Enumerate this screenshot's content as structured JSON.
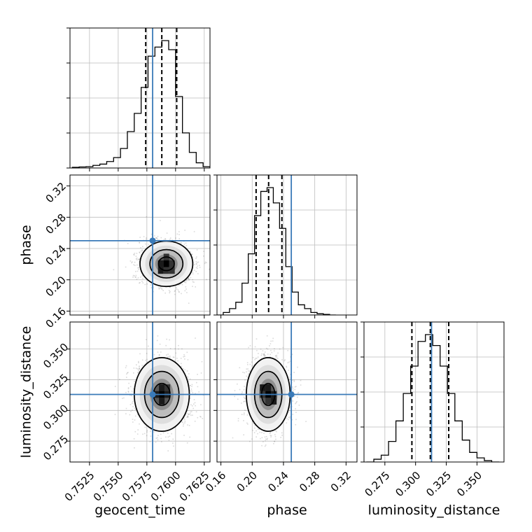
{
  "chart_data": {
    "type": "corner",
    "parameters": [
      "geocent_time",
      "phase",
      "luminosity_distance"
    ],
    "truth_color": "#3a7ab8",
    "truths": {
      "geocent_time": 0.758,
      "phase": 0.25,
      "luminosity_distance": 0.313
    },
    "ranges": {
      "geocent_time": [
        0.7508,
        0.763
      ],
      "phase": [
        0.155,
        0.334
      ],
      "luminosity_distance": [
        0.258,
        0.372
      ]
    },
    "ticks": {
      "geocent_time": [
        0.7525,
        0.755,
        0.7575,
        0.76,
        0.7625
      ],
      "phase": [
        0.16,
        0.2,
        0.24,
        0.28,
        0.32
      ],
      "luminosity_distance": [
        0.275,
        0.3,
        0.325,
        0.35
      ]
    },
    "tick_labels": {
      "geocent_time": [
        "0.7525",
        "0.7550",
        "0.7575",
        "0.7600",
        "0.7625"
      ],
      "phase": [
        "0.16",
        "0.20",
        "0.24",
        "0.28",
        "0.32"
      ],
      "luminosity_distance": [
        "0.275",
        "0.300",
        "0.325",
        "0.350"
      ]
    },
    "quantiles": {
      "geocent_time": [
        0.7574,
        0.7588,
        0.7601
      ],
      "phase": [
        0.205,
        0.221,
        0.238
      ],
      "luminosity_distance": [
        0.297,
        0.312,
        0.327
      ]
    },
    "histograms": {
      "geocent_time": {
        "edges": [
          0.751,
          0.7516,
          0.7522,
          0.7528,
          0.7534,
          0.754,
          0.7546,
          0.7552,
          0.7558,
          0.7564,
          0.757,
          0.7576,
          0.7582,
          0.7588,
          0.7594,
          0.76,
          0.7606,
          0.7612,
          0.7618,
          0.7624,
          0.763
        ],
        "counts": [
          0.005,
          0.008,
          0.01,
          0.02,
          0.03,
          0.05,
          0.08,
          0.15,
          0.28,
          0.42,
          0.62,
          0.86,
          0.93,
          0.98,
          0.91,
          0.55,
          0.27,
          0.12,
          0.04,
          0.01
        ]
      },
      "phase": {
        "edges": [
          0.155,
          0.163,
          0.171,
          0.179,
          0.187,
          0.195,
          0.203,
          0.211,
          0.219,
          0.227,
          0.235,
          0.243,
          0.251,
          0.259,
          0.267,
          0.275,
          0.283,
          0.291,
          0.299,
          0.307
        ],
        "counts": [
          0.0,
          0.02,
          0.05,
          0.1,
          0.25,
          0.48,
          0.78,
          0.97,
          1.0,
          0.88,
          0.68,
          0.38,
          0.18,
          0.08,
          0.05,
          0.02,
          0.01,
          0.005,
          0.0
        ]
      },
      "luminosity_distance": {
        "edges": [
          0.26,
          0.266,
          0.272,
          0.278,
          0.284,
          0.29,
          0.296,
          0.302,
          0.308,
          0.314,
          0.32,
          0.326,
          0.332,
          0.338,
          0.344,
          0.35,
          0.356,
          0.362,
          0.368
        ],
        "counts": [
          0.0,
          0.02,
          0.05,
          0.15,
          0.3,
          0.5,
          0.7,
          0.88,
          0.93,
          0.85,
          0.7,
          0.5,
          0.3,
          0.16,
          0.07,
          0.03,
          0.01,
          0.0
        ]
      }
    },
    "joint_2d": [
      {
        "x": "geocent_time",
        "y": "phase",
        "center": [
          0.7592,
          0.2205
        ],
        "sigma": [
          0.00115,
          0.0145
        ]
      },
      {
        "x": "geocent_time",
        "y": "luminosity_distance",
        "center": [
          0.7588,
          0.313
        ],
        "sigma": [
          0.0012,
          0.015
        ]
      },
      {
        "x": "phase",
        "y": "luminosity_distance",
        "center": [
          0.2205,
          0.313
        ],
        "sigma": [
          0.014,
          0.015
        ]
      }
    ]
  }
}
